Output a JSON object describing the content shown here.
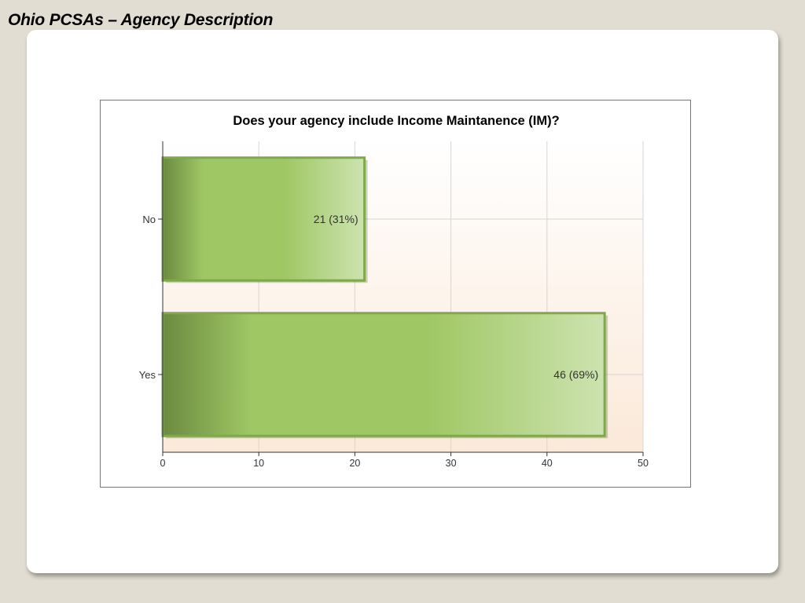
{
  "slide": {
    "title": "Ohio PCSAs – Agency Description"
  },
  "chart_data": {
    "type": "bar",
    "orientation": "horizontal",
    "title": "Does your agency include Income Maintanence (IM)?",
    "categories": [
      "No",
      "Yes"
    ],
    "values": [
      21,
      46
    ],
    "data_labels": [
      "21 (31%)",
      "46 (69%)"
    ],
    "xlim": [
      0,
      50
    ],
    "xticks": [
      0,
      10,
      20,
      30,
      40,
      50
    ],
    "xlabel": "",
    "ylabel": "",
    "grid": true,
    "legend": "none"
  },
  "colors": {
    "bar_dark": "#6b8a40",
    "bar_mid": "#9fc764",
    "bar_light": "#cde3b0",
    "bar_border": "#7fa84a",
    "plot_bg_top": "#ffffff",
    "plot_bg_bottom": "#fbe9d9",
    "grid": "#d6d6d6"
  }
}
